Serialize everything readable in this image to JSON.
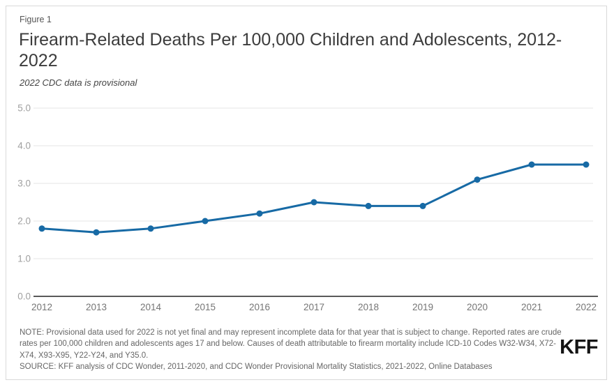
{
  "header": {
    "figure_label": "Figure 1",
    "title_line1": "Firearm-Related Deaths Per 100,000 Children and Adolescents, 2012-",
    "title_line2": "2022"
  },
  "chart_data": {
    "type": "line",
    "title": "Firearm-Related Deaths Per 100,000 Children and Adolescents, 2012-2022",
    "subtitle": "2022 CDC data is provisional",
    "categories": [
      "2012",
      "2013",
      "2014",
      "2015",
      "2016",
      "2017",
      "2018",
      "2019",
      "2020",
      "2021",
      "2022"
    ],
    "values": [
      1.8,
      1.7,
      1.8,
      2.0,
      2.2,
      2.5,
      2.4,
      2.4,
      3.1,
      3.5,
      3.5
    ],
    "xlabel": "",
    "ylabel": "",
    "ylim": [
      0.0,
      5.0
    ],
    "y_tick_step": 1.0,
    "y_tick_labels": [
      "0.0",
      "1.0",
      "2.0",
      "3.0",
      "4.0",
      "5.0"
    ],
    "grid": "horizontal",
    "legend": "none",
    "markers": true
  },
  "footer": {
    "note": "NOTE: Provisional data used for 2022 is not yet final and may represent incomplete data for that year that is subject to change. Reported rates are crude rates per 100,000 children and adolescents ages 17 and below. Causes of death attributable to firearm mortality include ICD-10 Codes W32-W34, X72-X74, X93-X95, Y22-Y24, and Y35.0.",
    "source": "SOURCE: KFF analysis of CDC Wonder, 2011-2020, and CDC Wonder Provisional Mortality Statistics, 2021-2022, Online Databases",
    "logo": "KFF"
  },
  "colors": {
    "line": "#176aa5",
    "grid_line": "#e6e6e6",
    "axis_line": "#595959",
    "y_tick_label": "#a0a0a0",
    "x_tick_label": "#757575",
    "title_text": "#3c3c3c",
    "note_text": "#666666",
    "border": "#d9d9d9",
    "logo_text": "#141414",
    "background": "#ffffff"
  }
}
